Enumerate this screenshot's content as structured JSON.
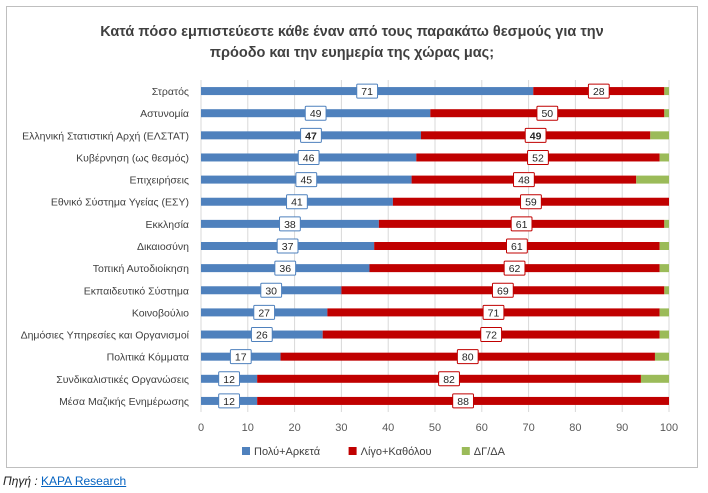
{
  "chart_data": {
    "type": "bar",
    "orientation": "horizontal",
    "stacked": true,
    "title_line1": "Κατά πόσο εμπιστεύεστε κάθε έναν από τους παρακάτω θεσμούς για την",
    "title_line2": "πρόοδο και την ευημερία της χώρας μας;",
    "categories": [
      "Στρατός",
      "Αστυνομία",
      "Ελληνική Στατιστική Αρχή (ΕΛΣΤΑΤ)",
      "Κυβέρνηση (ως θεσμός)",
      "Επιχειρήσεις",
      "Εθνικό Σύστημα Υγείας (ΕΣΥ)",
      "Εκκλησία",
      "Δικαιοσύνη",
      "Τοπική Αυτοδιοίκηση",
      "Εκπαιδευτικό Σύστημα",
      "Κοινοβούλιο",
      "Δημόσιες Υπηρεσίες και Οργανισμοί",
      "Πολιτικά Κόμματα",
      "Συνδικαλιστικές Οργανώσεις",
      "Μέσα Μαζικής Ενημέρωσης"
    ],
    "series": [
      {
        "name": "Πολύ+Αρκετά",
        "color": "#4f81bd",
        "values": [
          71,
          49,
          47,
          46,
          45,
          41,
          38,
          37,
          36,
          30,
          27,
          26,
          17,
          12,
          12
        ]
      },
      {
        "name": "Λίγο+Καθόλου",
        "color": "#c00000",
        "values": [
          28,
          50,
          49,
          52,
          48,
          59,
          61,
          61,
          62,
          69,
          71,
          72,
          80,
          82,
          88
        ]
      },
      {
        "name": "ΔΓ/ΔΑ",
        "color": "#9bbb59",
        "values": [
          1,
          1,
          4,
          2,
          7,
          0,
          1,
          2,
          2,
          1,
          2,
          2,
          3,
          6,
          0
        ]
      }
    ],
    "bold_labels_category": "Ελληνική Στατιστική Αρχή (ΕΛΣΤΑΤ)",
    "xlim": [
      0,
      100
    ],
    "xticks": [
      "0",
      "10",
      "20",
      "30",
      "40",
      "50",
      "60",
      "70",
      "80",
      "90",
      "100"
    ],
    "grid": true,
    "legend_position": "bottom"
  },
  "source": {
    "label": "Πηγή",
    "separator": " : ",
    "link_text": "KAPA Research"
  }
}
